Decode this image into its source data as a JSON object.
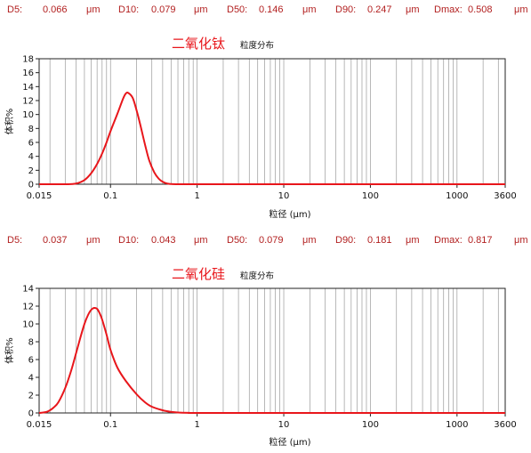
{
  "stat_unit": "μm",
  "chart_data": [
    {
      "type": "line",
      "title": "二氧化钛",
      "subtitle": "粒度分布",
      "xlabel": "粒径 (μm)",
      "ylabel": "体积%",
      "xscale": "log",
      "xlim": [
        0.015,
        3600
      ],
      "ylim": [
        0,
        18
      ],
      "yticks": [
        0,
        2,
        4,
        6,
        8,
        10,
        12,
        14,
        16,
        18
      ],
      "xtick_labels": [
        "0.015",
        "0.1",
        "1",
        "10",
        "100",
        "1000",
        "3600"
      ],
      "stats": [
        {
          "label": "D5:",
          "value": "0.066"
        },
        {
          "label": "D10:",
          "value": "0.079"
        },
        {
          "label": "D50:",
          "value": "0.146"
        },
        {
          "label": "D90:",
          "value": "0.247"
        },
        {
          "label": "Dmax:",
          "value": "0.508"
        }
      ],
      "series": [
        {
          "color": "#e8161b",
          "x": [
            0.015,
            0.03,
            0.04,
            0.05,
            0.06,
            0.07,
            0.08,
            0.09,
            0.1,
            0.12,
            0.14,
            0.15,
            0.16,
            0.18,
            0.2,
            0.22,
            0.25,
            0.28,
            0.32,
            0.36,
            0.4,
            0.45,
            0.5,
            0.6,
            1,
            10,
            100,
            1000,
            3600
          ],
          "y": [
            0,
            0,
            0.1,
            0.6,
            1.6,
            2.9,
            4.4,
            6.0,
            7.6,
            10.1,
            12.3,
            13.0,
            13.1,
            12.4,
            10.6,
            8.6,
            5.7,
            3.4,
            1.7,
            0.8,
            0.35,
            0.1,
            0.03,
            0,
            0,
            0,
            0,
            0,
            0
          ]
        }
      ]
    },
    {
      "type": "line",
      "title": "二氧化硅",
      "subtitle": "粒度分布",
      "xlabel": "粒径 (μm)",
      "ylabel": "体积%",
      "xscale": "log",
      "xlim": [
        0.015,
        3600
      ],
      "ylim": [
        0,
        14
      ],
      "yticks": [
        0,
        2,
        4,
        6,
        8,
        10,
        12,
        14
      ],
      "xtick_labels": [
        "0.015",
        "0.1",
        "1",
        "10",
        "100",
        "1000",
        "3600"
      ],
      "stats": [
        {
          "label": "D5:",
          "value": "0.037"
        },
        {
          "label": "D10:",
          "value": "0.043"
        },
        {
          "label": "D50:",
          "value": "0.079"
        },
        {
          "label": "D90:",
          "value": "0.181"
        },
        {
          "label": "Dmax:",
          "value": "0.817"
        }
      ],
      "series": [
        {
          "color": "#e8161b",
          "x": [
            0.015,
            0.018,
            0.02,
            0.022,
            0.025,
            0.03,
            0.035,
            0.04,
            0.045,
            0.05,
            0.055,
            0.06,
            0.065,
            0.07,
            0.075,
            0.08,
            0.09,
            0.1,
            0.12,
            0.15,
            0.2,
            0.25,
            0.3,
            0.4,
            0.5,
            0.6,
            0.8,
            1,
            10,
            100,
            1000,
            3600
          ],
          "y": [
            0,
            0.1,
            0.3,
            0.6,
            1.2,
            2.8,
            4.7,
            6.7,
            8.5,
            10.0,
            11.0,
            11.6,
            11.8,
            11.7,
            11.2,
            10.5,
            8.8,
            7.1,
            5.1,
            3.6,
            2.1,
            1.2,
            0.7,
            0.3,
            0.12,
            0.05,
            0.01,
            0,
            0,
            0,
            0,
            0
          ]
        }
      ]
    }
  ]
}
